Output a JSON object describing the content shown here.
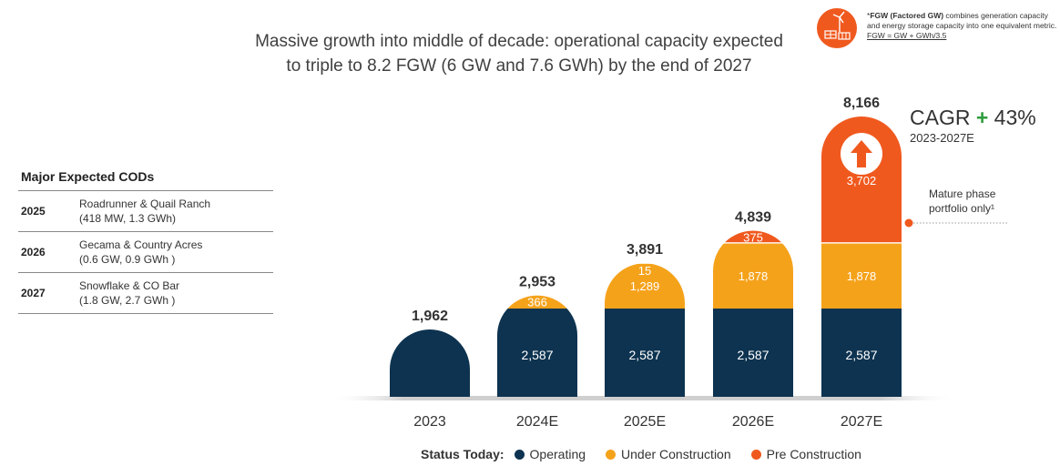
{
  "header": {
    "title_line1": "Massive growth into middle of decade: operational capacity expected",
    "title_line2": "to triple to 8.2 FGW (6 GW and 7.6 GWh) by the end of 2027"
  },
  "footnote": {
    "prefix": "*",
    "bold": "FGW (Factored GW)",
    "text": " combines generation capacity and energy storage capacity into one equivalent metric. ",
    "formula": "FGW = GW + GWh/3.5"
  },
  "major_cods": {
    "title": "Major Expected CODs",
    "rows": [
      {
        "year": "2025",
        "line1": "Roadrunner & Quail Ranch",
        "line2": "(418 MW, 1.3 GWh)"
      },
      {
        "year": "2026",
        "line1": "Gecama & Country Acres",
        "line2": "(0.6 GW, 0.9 GWh )"
      },
      {
        "year": "2027",
        "line1": "Snowflake & CO Bar",
        "line2": "(1.8 GW, 2.7 GWh )"
      }
    ]
  },
  "cagr": {
    "label": "CAGR",
    "plus": "+",
    "value": "43%",
    "period": "2023-2027E"
  },
  "mature_note": {
    "line1": "Mature phase",
    "line2": "portfolio only¹"
  },
  "legend": {
    "title": "Status Today:",
    "items": [
      {
        "label": "Operating",
        "color": "#0d3350"
      },
      {
        "label": "Under Construction",
        "color": "#f5a21b"
      },
      {
        "label": "Pre Construction",
        "color": "#f0591e"
      }
    ]
  },
  "chart_data": {
    "type": "bar",
    "stacked": true,
    "categories": [
      "2023",
      "2024E",
      "2025E",
      "2026E",
      "2027E"
    ],
    "series": [
      {
        "name": "Operating",
        "color": "#0d3350",
        "values": [
          1962,
          2587,
          2587,
          2587,
          2587
        ],
        "labels": [
          "",
          "2,587",
          "2,587",
          "2,587",
          "2,587"
        ]
      },
      {
        "name": "Under Construction",
        "color": "#f5a21b",
        "values": [
          0,
          366,
          1289,
          1878,
          1878
        ],
        "labels": [
          "",
          "366",
          "1,289",
          "1,878",
          "1,878"
        ]
      },
      {
        "name": "Pre Construction",
        "color": "#f0591e",
        "values": [
          0,
          0,
          15,
          375,
          3702
        ],
        "labels": [
          "",
          "",
          "15",
          "375",
          "3,702"
        ]
      }
    ],
    "totals": [
      "1,962",
      "2,953",
      "3,891",
      "4,839",
      "8,166"
    ],
    "total_values": [
      1962,
      2953,
      3891,
      4839,
      8166
    ],
    "ylim": [
      0,
      8166
    ]
  }
}
